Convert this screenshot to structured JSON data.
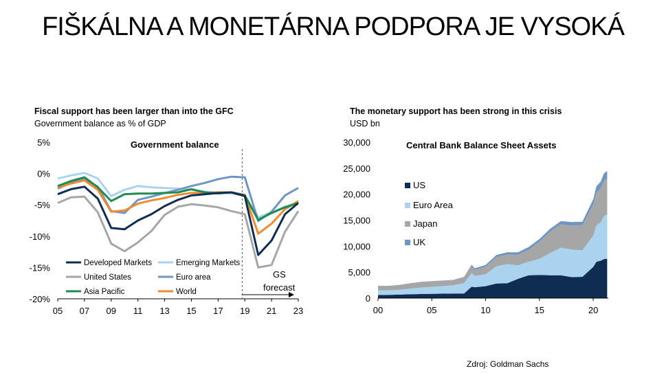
{
  "page": {
    "title": "FIŠKÁLNA A MONETÁRNA PODPORA JE VYSOKÁ",
    "source": "Zdroj: Goldman Sachs"
  },
  "colors": {
    "developed": "#0f2d52",
    "emerging": "#a9d3ef",
    "united_states": "#a6a6a6",
    "euro_area": "#6f95c4",
    "asia_pacific": "#1e8c4e",
    "world": "#ef8a30",
    "us_area": "#0f2d52",
    "euro_area_area": "#a9d3ef",
    "japan_area": "#a6a6a6",
    "uk_area": "#6f95c4"
  },
  "chart_data": [
    {
      "type": "line",
      "title": "Fiscal support has been larger than into the GFC",
      "subtitle": "Government balance as % of GDP",
      "inner_title": "Government balance",
      "forecast_label": [
        "GS",
        "forecast"
      ],
      "xlabel": "",
      "ylabel": "",
      "xlim": [
        2005,
        2023
      ],
      "ylim": [
        -20,
        5
      ],
      "x_ticks": [
        "05",
        "07",
        "09",
        "11",
        "13",
        "15",
        "17",
        "19",
        "21",
        "23"
      ],
      "y_ticks": [
        "5%",
        "0%",
        "-5%",
        "-10%",
        "-15%",
        "-20%"
      ],
      "forecast_start": 2018.8,
      "x": [
        2005,
        2006,
        2007,
        2008,
        2009,
        2010,
        2011,
        2012,
        2013,
        2014,
        2015,
        2016,
        2017,
        2018,
        2019,
        2020,
        2021,
        2022,
        2023
      ],
      "series": [
        {
          "name": "Developed Markets",
          "color_key": "developed",
          "values": [
            -3.3,
            -2.5,
            -2.1,
            -4.0,
            -8.7,
            -8.9,
            -7.5,
            -6.5,
            -5.2,
            -4.2,
            -3.5,
            -3.3,
            -3.1,
            -3.0,
            -3.6,
            -13.0,
            -10.7,
            -6.5,
            -4.7
          ]
        },
        {
          "name": "Emerging Markets",
          "color_key": "emerging",
          "values": [
            -0.8,
            -0.3,
            0.1,
            -0.8,
            -3.6,
            -2.6,
            -2.0,
            -2.2,
            -2.3,
            -2.4,
            -2.6,
            -2.9,
            -3.0,
            -3.2,
            -3.5,
            -7.0,
            -6.2,
            -5.3,
            -4.6
          ]
        },
        {
          "name": "United States",
          "color_key": "united_states",
          "values": [
            -4.7,
            -3.8,
            -3.7,
            -6.2,
            -11.2,
            -12.4,
            -11.0,
            -9.2,
            -6.6,
            -5.3,
            -4.9,
            -5.1,
            -5.4,
            -6.0,
            -6.5,
            -15.0,
            -14.6,
            -9.3,
            -6.0
          ]
        },
        {
          "name": "Euro area",
          "color_key": "euro_area",
          "values": [
            -2.4,
            -1.5,
            -0.8,
            -2.1,
            -6.0,
            -6.3,
            -4.2,
            -3.7,
            -3.1,
            -2.6,
            -2.0,
            -1.5,
            -0.9,
            -0.5,
            -0.6,
            -7.6,
            -6.1,
            -3.5,
            -2.3
          ]
        },
        {
          "name": "Asia Pacific",
          "color_key": "asia_pacific",
          "values": [
            -2.0,
            -1.2,
            -0.6,
            -2.2,
            -4.4,
            -3.3,
            -3.2,
            -3.2,
            -3.1,
            -3.0,
            -2.5,
            -3.0,
            -3.2,
            -3.0,
            -3.5,
            -7.4,
            -6.3,
            -5.4,
            -4.7
          ]
        },
        {
          "name": "World",
          "color_key": "world",
          "values": [
            -2.2,
            -1.6,
            -1.1,
            -2.6,
            -6.1,
            -5.9,
            -4.8,
            -4.3,
            -3.9,
            -3.4,
            -3.1,
            -3.1,
            -3.0,
            -3.0,
            -3.4,
            -9.6,
            -8.0,
            -5.7,
            -4.4
          ]
        }
      ]
    },
    {
      "type": "area",
      "title": "The monetary support has been strong in this crisis",
      "subtitle": "USD bn",
      "inner_title": "Central Bank Balance Sheet Assets",
      "stacked": true,
      "xlim": [
        2000,
        2021.4
      ],
      "ylim": [
        0,
        30000
      ],
      "x_ticks": [
        "00",
        "05",
        "10",
        "15",
        "20"
      ],
      "y_ticks": [
        "30,000",
        "25,000",
        "20,000",
        "15,000",
        "10,000",
        "5,000",
        "0"
      ],
      "x": [
        2000,
        2001,
        2002,
        2003,
        2004,
        2005,
        2006,
        2007,
        2008,
        2008.7,
        2009,
        2010,
        2011,
        2012,
        2013,
        2014,
        2015,
        2016,
        2017,
        2018,
        2019,
        2020,
        2020.3,
        2020.7,
        2021,
        2021.3
      ],
      "series": [
        {
          "name": "US",
          "color_key": "us_area",
          "values": [
            600,
            620,
            680,
            740,
            790,
            820,
            860,
            890,
            900,
            2200,
            2100,
            2300,
            2800,
            2850,
            3700,
            4400,
            4450,
            4400,
            4400,
            4050,
            4100,
            6000,
            7000,
            7200,
            7500,
            7600
          ]
        },
        {
          "name": "Euro Area",
          "color_key": "euro_area_area",
          "values": [
            900,
            880,
            950,
            1100,
            1250,
            1350,
            1450,
            1600,
            2000,
            2600,
            2200,
            2300,
            3300,
            3700,
            2600,
            2600,
            3100,
            4300,
            5300,
            5300,
            5100,
            6000,
            7000,
            7400,
            8300,
            8500
          ]
        },
        {
          "name": "Japan",
          "color_key": "japan_area",
          "values": [
            800,
            800,
            850,
            950,
            1050,
            1050,
            1000,
            950,
            1100,
            1250,
            1150,
            1450,
            1800,
            1850,
            2000,
            2300,
            3300,
            4100,
            4500,
            4600,
            4800,
            6000,
            6300,
            6500,
            6800,
            6900
          ]
        },
        {
          "name": "UK",
          "color_key": "uk_area",
          "values": [
            60,
            60,
            60,
            60,
            60,
            60,
            60,
            60,
            80,
            350,
            300,
            320,
            400,
            420,
            500,
            530,
            520,
            550,
            620,
            680,
            700,
            1000,
            1200,
            1300,
            1400,
            1450
          ]
        }
      ]
    }
  ]
}
